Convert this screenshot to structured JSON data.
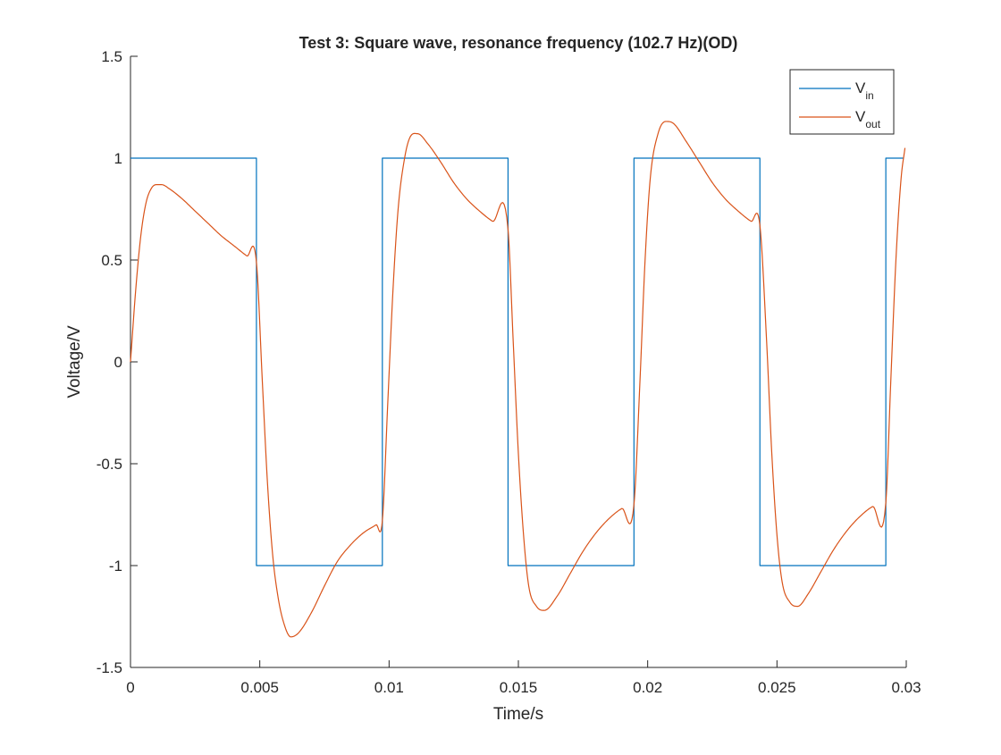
{
  "chart_data": {
    "type": "line",
    "title": "Test 3: Square wave, resonance frequency (102.7 Hz)(OD)",
    "xlabel": "Time/s",
    "ylabel": "Voltage/V",
    "xlim": [
      0,
      0.03
    ],
    "ylim": [
      -1.5,
      1.5
    ],
    "xticks": [
      0,
      0.005,
      0.01,
      0.015,
      0.02,
      0.025,
      0.03
    ],
    "xtick_labels": [
      "0",
      "0.005",
      "0.01",
      "0.015",
      "0.02",
      "0.025",
      "0.03"
    ],
    "yticks": [
      -1.5,
      -1,
      -0.5,
      0,
      0.5,
      1,
      1.5
    ],
    "ytick_labels": [
      "-1.5",
      "-1",
      "-0.5",
      "0",
      "0.5",
      "1",
      "1.5"
    ],
    "grid": false,
    "legend_position": "top-right",
    "series": [
      {
        "name": "V_in",
        "legend_main": "V",
        "legend_sub": "in",
        "color": "#0072BD",
        "x": [
          0,
          0.00487,
          0.00487,
          0.00974,
          0.00974,
          0.0146,
          0.0146,
          0.01947,
          0.01947,
          0.02434,
          0.02434,
          0.02921,
          0.02921,
          0.0299
        ],
        "y": [
          1,
          1,
          -1,
          -1,
          1,
          1,
          -1,
          -1,
          1,
          1,
          -1,
          -1,
          1,
          1
        ]
      },
      {
        "name": "V_out",
        "legend_main": "V",
        "legend_sub": "out",
        "color": "#D95319",
        "x": [
          0,
          0.0002,
          0.0004,
          0.0006,
          0.0008,
          0.001,
          0.0012,
          0.0015,
          0.002,
          0.0025,
          0.003,
          0.0035,
          0.004,
          0.0045,
          0.00487,
          0.0051,
          0.0053,
          0.0055,
          0.0057,
          0.0059,
          0.0062,
          0.0065,
          0.007,
          0.0075,
          0.008,
          0.0085,
          0.009,
          0.0095,
          0.00974,
          0.00995,
          0.01015,
          0.01035,
          0.0106,
          0.0108,
          0.0111,
          0.0115,
          0.012,
          0.0125,
          0.013,
          0.0135,
          0.014,
          0.0146,
          0.0148,
          0.015,
          0.0152,
          0.0154,
          0.0157,
          0.016,
          0.0165,
          0.017,
          0.0175,
          0.018,
          0.0185,
          0.019,
          0.01947,
          0.0197,
          0.0199,
          0.0201,
          0.0204,
          0.0207,
          0.021,
          0.0215,
          0.022,
          0.0225,
          0.023,
          0.0235,
          0.024,
          0.02434,
          0.0246,
          0.0248,
          0.025,
          0.0252,
          0.0255,
          0.0258,
          0.0262,
          0.0267,
          0.0272,
          0.0277,
          0.0282,
          0.0287,
          0.02921,
          0.0294,
          0.0296,
          0.0298,
          0.02995
        ],
        "y": [
          0,
          0.35,
          0.62,
          0.78,
          0.85,
          0.87,
          0.87,
          0.85,
          0.8,
          0.74,
          0.68,
          0.62,
          0.57,
          0.52,
          0.49,
          -0.1,
          -0.6,
          -0.95,
          -1.15,
          -1.27,
          -1.35,
          -1.33,
          -1.23,
          -1.1,
          -0.98,
          -0.9,
          -0.84,
          -0.8,
          -0.78,
          -0.2,
          0.35,
          0.75,
          1.0,
          1.1,
          1.12,
          1.07,
          0.98,
          0.88,
          0.8,
          0.74,
          0.69,
          0.65,
          0.1,
          -0.45,
          -0.85,
          -1.1,
          -1.2,
          -1.22,
          -1.15,
          -1.04,
          -0.93,
          -0.84,
          -0.77,
          -0.72,
          -0.7,
          -0.1,
          0.5,
          0.9,
          1.12,
          1.18,
          1.17,
          1.08,
          0.98,
          0.88,
          0.8,
          0.74,
          0.69,
          0.67,
          0.1,
          -0.45,
          -0.85,
          -1.08,
          -1.18,
          -1.2,
          -1.14,
          -1.03,
          -0.92,
          -0.83,
          -0.76,
          -0.71,
          -0.69,
          -0.1,
          0.5,
          0.9,
          1.05
        ]
      }
    ]
  }
}
